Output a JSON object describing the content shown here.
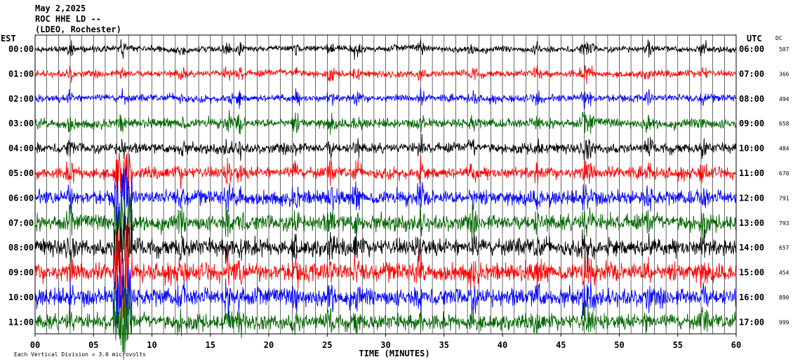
{
  "header": {
    "date": "May 2,2025",
    "station": "ROC HHE LD --",
    "network": "(LDEO, Rochester)"
  },
  "left_axis_label": "EST",
  "right_axis_label": "UTC",
  "dc_label": "DC",
  "footer": {
    "scale_note": "Each Vertical Division = 3.0  microvolts"
  },
  "chart_data": {
    "type": "line",
    "title": "ROC HHE LD --",
    "xlabel": "TIME (MINUTES)",
    "xlim": [
      0,
      60
    ],
    "x_ticks": [
      "00",
      "05",
      "10",
      "15",
      "20",
      "25",
      "30",
      "35",
      "40",
      "45",
      "50",
      "55",
      "60"
    ],
    "series_colors": [
      "#000000",
      "#ff0000",
      "#0000ff",
      "#006600"
    ],
    "rows": [
      {
        "est": "00:00",
        "utc": "06:00",
        "dc": "507",
        "color": "#000000",
        "noise": 0.25
      },
      {
        "est": "01:00",
        "utc": "07:00",
        "dc": "366",
        "color": "#ff0000",
        "noise": 0.3
      },
      {
        "est": "02:00",
        "utc": "08:00",
        "dc": "494",
        "color": "#0000ff",
        "noise": 0.35
      },
      {
        "est": "03:00",
        "utc": "09:00",
        "dc": "658",
        "color": "#006600",
        "noise": 0.55
      },
      {
        "est": "04:00",
        "utc": "10:00",
        "dc": "484",
        "color": "#000000",
        "noise": 0.6
      },
      {
        "est": "05:00",
        "utc": "11:00",
        "dc": "670",
        "color": "#ff0000",
        "noise": 0.75
      },
      {
        "est": "06:00",
        "utc": "12:00",
        "dc": "791",
        "color": "#0000ff",
        "noise": 1.0
      },
      {
        "est": "07:00",
        "utc": "13:00",
        "dc": "793",
        "color": "#006600",
        "noise": 1.15
      },
      {
        "est": "08:00",
        "utc": "14:00",
        "dc": "657",
        "color": "#000000",
        "noise": 1.25
      },
      {
        "est": "09:00",
        "utc": "15:00",
        "dc": "454",
        "color": "#ff0000",
        "noise": 1.35
      },
      {
        "est": "10:00",
        "utc": "16:00",
        "dc": "890",
        "color": "#0000ff",
        "noise": 1.3
      },
      {
        "est": "11:00",
        "utc": "17:00",
        "dc": "999",
        "color": "#006600",
        "noise": 1.1
      }
    ]
  }
}
